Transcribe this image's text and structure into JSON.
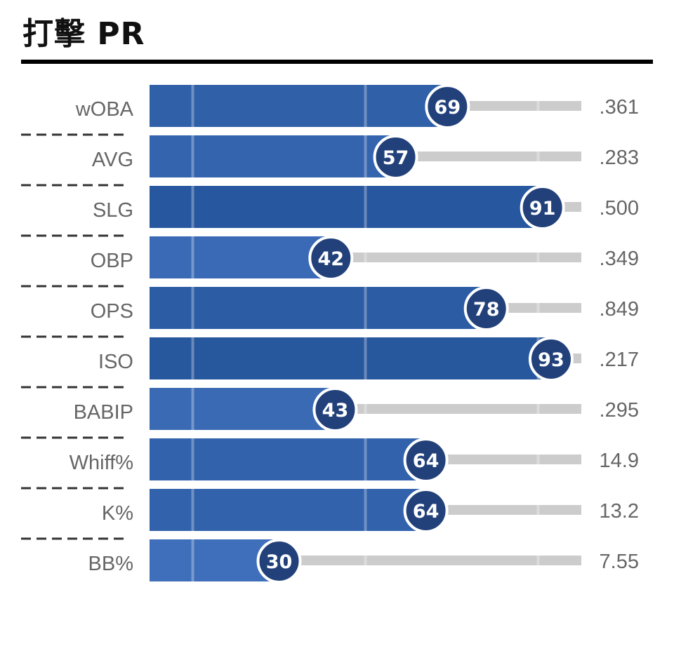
{
  "title": "打擊 PR",
  "colors": {
    "bar_low": "#4a7ac8",
    "bar_high": "#24549a",
    "circle": "#22417a",
    "track": "#cccccc",
    "separator": "#333333",
    "label": "#666666"
  },
  "chart_data": {
    "type": "bar",
    "orientation": "horizontal",
    "title": "打擊 PR",
    "categories": [
      "wOBA",
      "AVG",
      "SLG",
      "OBP",
      "OPS",
      "ISO",
      "BABIP",
      "Whiff%",
      "K%",
      "BB%"
    ],
    "values": [
      69,
      57,
      91,
      42,
      78,
      93,
      43,
      64,
      64,
      30
    ],
    "value_labels": [
      ".361",
      ".283",
      ".500",
      ".349",
      ".849",
      ".217",
      ".295",
      "14.9",
      "13.2",
      "7.55"
    ],
    "xlim": [
      0,
      100
    ],
    "reference_lines": [
      10,
      50,
      90
    ]
  }
}
